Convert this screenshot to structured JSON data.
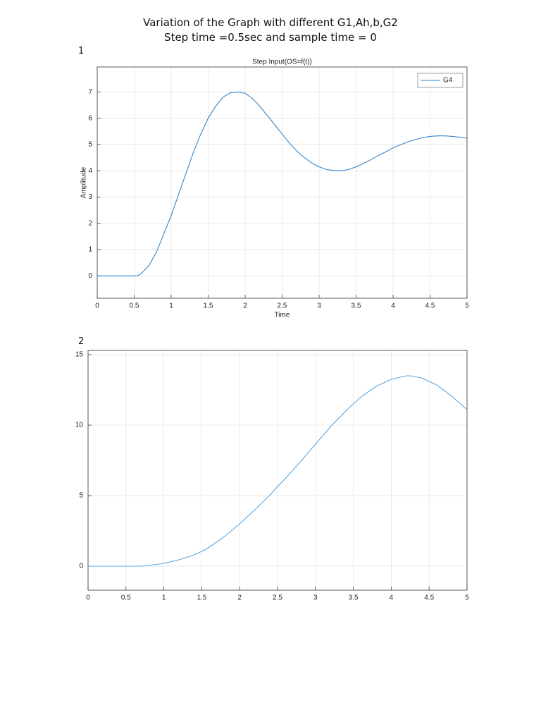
{
  "header": {
    "title": "Variation of the Graph with different G1,Ah,b,G2",
    "subtitle": "Step time =0.5sec and sample time = 0"
  },
  "figure_labels": [
    "1",
    "2"
  ],
  "chart_data": [
    {
      "type": "line",
      "title": "Step Input(OS=f(t))",
      "x_label": "Time",
      "y_label": "Amplitude",
      "xlim": [
        0,
        5
      ],
      "ylim": [
        -0.85,
        7.95
      ],
      "xticks": [
        0,
        0.5,
        1,
        1.5,
        2,
        2.5,
        3,
        3.5,
        4,
        4.5,
        5
      ],
      "yticks": [
        0,
        1,
        2,
        3,
        4,
        5,
        6,
        7
      ],
      "grid": true,
      "legend": "upper-right",
      "series": [
        {
          "name": "G4",
          "color": "#2f86d0",
          "x": [
            0,
            0.5,
            0.55,
            0.6,
            0.7,
            0.8,
            0.9,
            1.0,
            1.1,
            1.2,
            1.3,
            1.4,
            1.5,
            1.6,
            1.7,
            1.8,
            1.9,
            2.0,
            2.1,
            2.2,
            2.3,
            2.4,
            2.5,
            2.6,
            2.7,
            2.8,
            2.9,
            3.0,
            3.1,
            3.2,
            3.3,
            3.4,
            3.5,
            3.6,
            3.7,
            3.8,
            3.9,
            4.0,
            4.1,
            4.2,
            4.3,
            4.4,
            4.5,
            4.6,
            4.7,
            4.8,
            4.9,
            5.0
          ],
          "values": [
            0,
            0,
            0,
            0.1,
            0.4,
            0.9,
            1.6,
            2.3,
            3.1,
            3.9,
            4.7,
            5.4,
            6.0,
            6.45,
            6.8,
            6.97,
            7.0,
            6.95,
            6.75,
            6.45,
            6.1,
            5.75,
            5.4,
            5.05,
            4.75,
            4.5,
            4.3,
            4.15,
            4.05,
            4.01,
            4.0,
            4.05,
            4.15,
            4.28,
            4.42,
            4.58,
            4.72,
            4.87,
            4.99,
            5.1,
            5.19,
            5.26,
            5.31,
            5.33,
            5.33,
            5.31,
            5.28,
            5.24
          ]
        }
      ]
    },
    {
      "type": "line",
      "xlim": [
        0,
        5
      ],
      "ylim": [
        -1.7,
        15.3
      ],
      "xticks": [
        0,
        0.5,
        1,
        1.5,
        2,
        2.5,
        3,
        3.5,
        4,
        4.5,
        5
      ],
      "yticks": [
        0,
        5,
        10,
        15
      ],
      "grid": true,
      "series": [
        {
          "color": "#5aa7e0",
          "x": [
            0,
            0.7,
            0.8,
            1.0,
            1.2,
            1.4,
            1.5,
            1.6,
            1.8,
            2.0,
            2.2,
            2.4,
            2.5,
            2.6,
            2.8,
            3.0,
            3.2,
            3.4,
            3.5,
            3.6,
            3.8,
            4.0,
            4.2,
            4.25,
            4.4,
            4.6,
            4.8,
            5.0
          ],
          "values": [
            0,
            0,
            0.05,
            0.2,
            0.45,
            0.8,
            1.05,
            1.35,
            2.1,
            3.0,
            4.0,
            5.05,
            5.65,
            6.2,
            7.4,
            8.65,
            9.9,
            11.0,
            11.5,
            12.0,
            12.75,
            13.25,
            13.5,
            13.5,
            13.35,
            12.85,
            12.05,
            11.1
          ]
        }
      ]
    }
  ]
}
